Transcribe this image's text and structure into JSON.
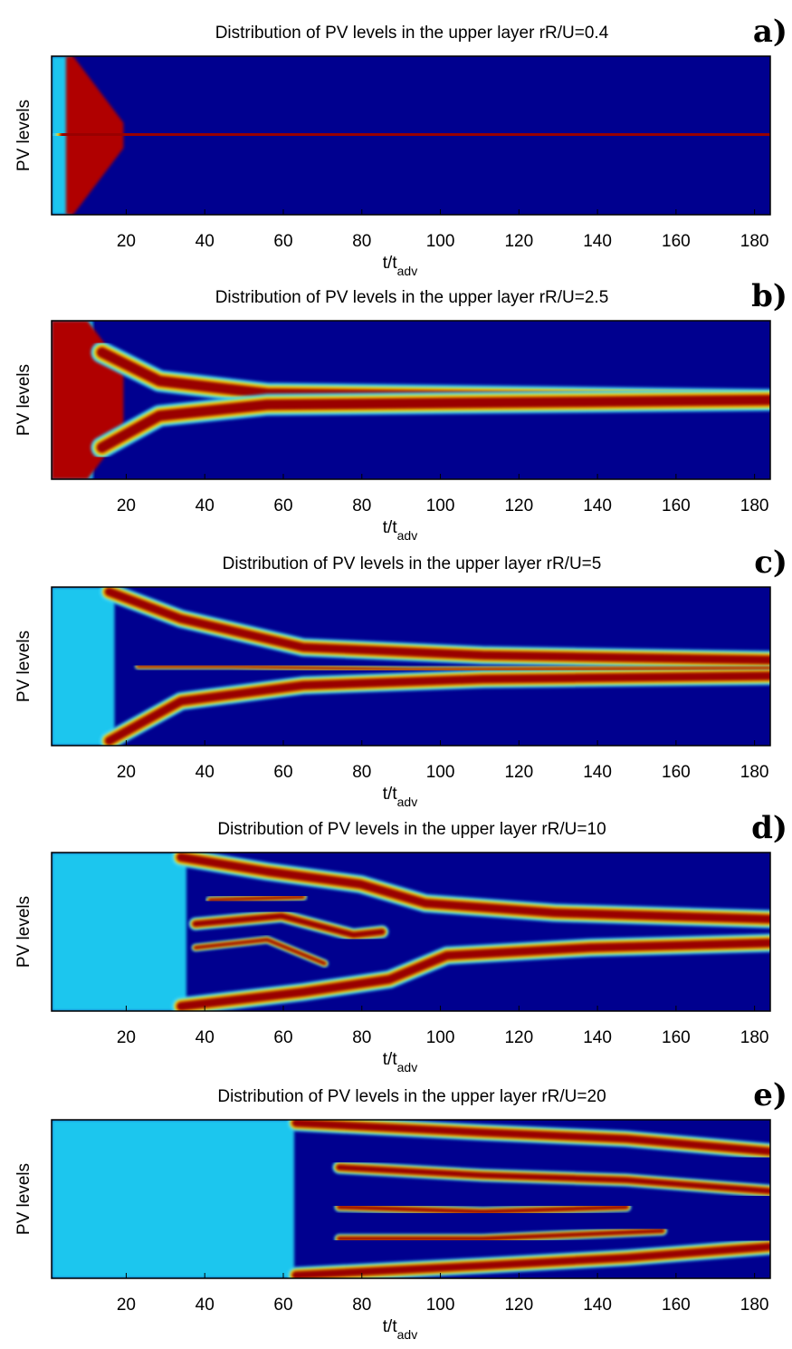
{
  "chart_data": [
    {
      "type": "heatmap",
      "title": "Distribution of PV levels in the upper layer rR/U=0.4",
      "label": "a)",
      "ylabel": "PV levels",
      "xlabel": "t/t",
      "xlabel_sub": "adv",
      "xlim": [
        1,
        184
      ],
      "xticks": [
        20,
        40,
        60,
        80,
        100,
        120,
        140,
        160,
        180
      ]
    },
    {
      "type": "heatmap",
      "title": "Distribution of PV levels in the upper layer rR/U=2.5",
      "label": "b)",
      "ylabel": "PV levels",
      "xlabel": "t/t",
      "xlabel_sub": "adv",
      "xlim": [
        1,
        184
      ],
      "xticks": [
        20,
        40,
        60,
        80,
        100,
        120,
        140,
        160,
        180
      ]
    },
    {
      "type": "heatmap",
      "title": "Distribution of PV levels in the upper layer rR/U=5",
      "label": "c)",
      "ylabel": "PV levels",
      "xlabel": "t/t",
      "xlabel_sub": "adv",
      "xlim": [
        1,
        184
      ],
      "xticks": [
        20,
        40,
        60,
        80,
        100,
        120,
        140,
        160,
        180
      ]
    },
    {
      "type": "heatmap",
      "title": "Distribution of PV levels in the upper layer rR/U=10",
      "label": "d)",
      "ylabel": "PV levels",
      "xlabel": "t/t",
      "xlabel_sub": "adv",
      "xlim": [
        1,
        184
      ],
      "xticks": [
        20,
        40,
        60,
        80,
        100,
        120,
        140,
        160,
        180
      ]
    },
    {
      "type": "heatmap",
      "title": "Distribution of PV levels in the upper layer rR/U=20",
      "label": "e)",
      "ylabel": "PV levels",
      "xlabel": "t/t",
      "xlabel_sub": "adv",
      "xlim": [
        1,
        184
      ],
      "xticks": [
        20,
        40,
        60,
        80,
        100,
        120,
        140,
        160,
        180
      ]
    }
  ]
}
